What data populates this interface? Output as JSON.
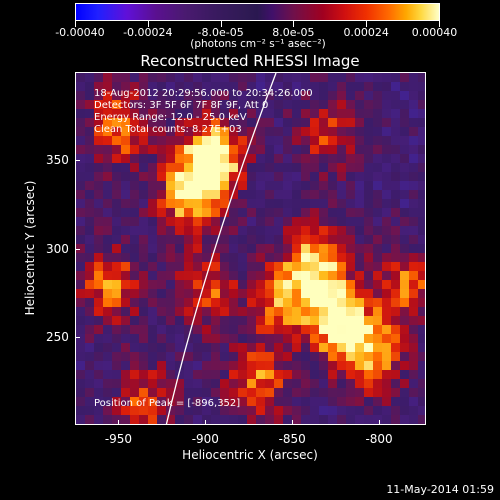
{
  "colorbar": {
    "tick_labels": [
      "-0.00040",
      "-0.00024",
      "-8.0e-05",
      "8.0e-05",
      "0.00024",
      "0.00040"
    ],
    "units": "(photons cm⁻² s⁻¹ asec⁻²)",
    "colors": [
      "#0000ff",
      "#4a1a70",
      "#c00010",
      "#ff8000",
      "#ffffc8"
    ]
  },
  "title": "Reconstructed RHESSI Image",
  "info": {
    "time": "18-Aug-2012 20:29:56.000 to 20:34:26.000",
    "detectors": "Detectors: 3F 5F 6F 7F 8F 9F, Att 0",
    "energy": "Energy Range: 12.0 - 25.0 keV",
    "method": "Clean     Total counts: 8.27E+03",
    "peak": "Position of Peak = [-896,352]"
  },
  "axes": {
    "xlabel": "Heliocentric X (arcsec)",
    "ylabel": "Heliocentric Y (arcsec)",
    "x_ticks": [
      "-950",
      "-900",
      "-850",
      "-800"
    ],
    "y_ticks": [
      "350",
      "300",
      "250"
    ],
    "xlim": [
      -975,
      -773
    ],
    "ylim": [
      200,
      400
    ]
  },
  "timestamp": "11-May-2014 01:59",
  "sources": [
    {
      "x": -896,
      "y": 352,
      "amp": 1.0
    },
    {
      "x": -910,
      "y": 330,
      "amp": 0.75
    },
    {
      "x": -950,
      "y": 370,
      "amp": 0.65
    },
    {
      "x": -955,
      "y": 280,
      "amp": 0.6
    },
    {
      "x": -900,
      "y": 278,
      "amp": 0.55
    },
    {
      "x": -858,
      "y": 270,
      "amp": 0.55
    },
    {
      "x": -838,
      "y": 292,
      "amp": 0.8
    },
    {
      "x": -825,
      "y": 260,
      "amp": 0.9
    },
    {
      "x": -805,
      "y": 240,
      "amp": 0.75
    },
    {
      "x": -785,
      "y": 280,
      "amp": 0.6
    },
    {
      "x": -870,
      "y": 225,
      "amp": 0.6
    },
    {
      "x": -935,
      "y": 215,
      "amp": 0.5
    },
    {
      "x": -830,
      "y": 365,
      "amp": 0.45
    }
  ]
}
